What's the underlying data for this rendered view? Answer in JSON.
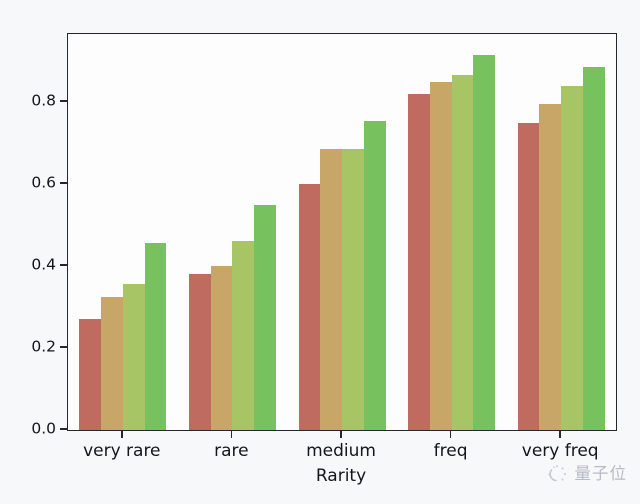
{
  "watermark": {
    "text": "量子位"
  },
  "chart_data": {
    "type": "bar",
    "title": "",
    "xlabel": "Rarity",
    "ylabel": "",
    "categories": [
      "very rare",
      "rare",
      "medium",
      "freq",
      "very freq"
    ],
    "series": [
      {
        "name": "series-1",
        "color": "#c06b60",
        "values": [
          0.27,
          0.38,
          0.6,
          0.82,
          0.75
        ]
      },
      {
        "name": "series-2",
        "color": "#c8a668",
        "values": [
          0.325,
          0.4,
          0.685,
          0.85,
          0.795
        ]
      },
      {
        "name": "series-3",
        "color": "#a8c566",
        "values": [
          0.355,
          0.46,
          0.685,
          0.865,
          0.84
        ]
      },
      {
        "name": "series-4",
        "color": "#77c25f",
        "values": [
          0.455,
          0.55,
          0.755,
          0.915,
          0.885
        ]
      }
    ],
    "yticks": [
      0.0,
      0.2,
      0.4,
      0.6,
      0.8
    ],
    "ylim": [
      0,
      0.966
    ],
    "grid": false,
    "legend": "none"
  }
}
